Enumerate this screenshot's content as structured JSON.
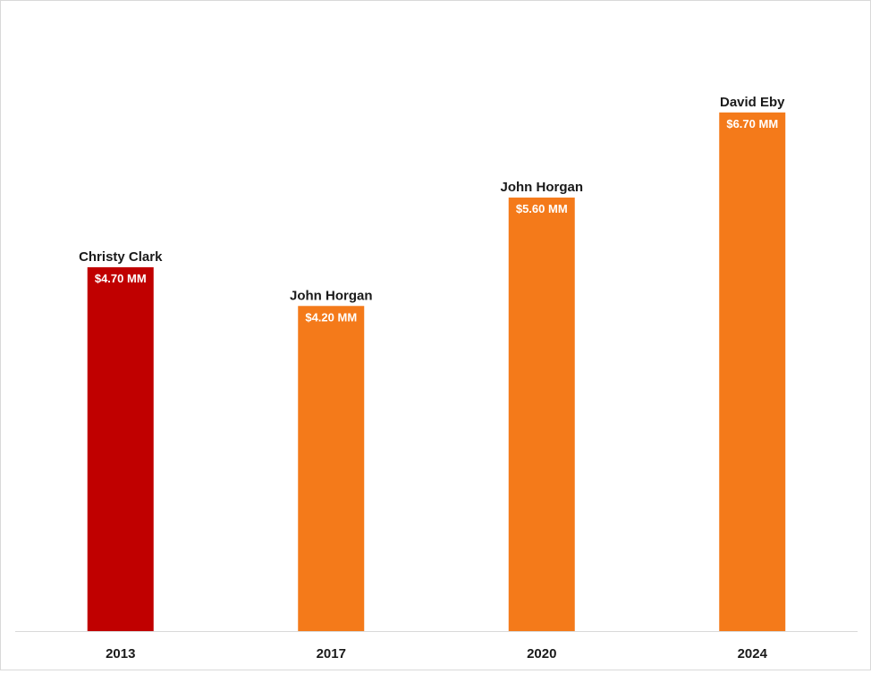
{
  "chart_data": {
    "type": "bar",
    "categories": [
      "2013",
      "2017",
      "2020",
      "2024"
    ],
    "values": [
      4.7,
      4.2,
      5.6,
      6.7
    ],
    "annotations": [
      "Christy Clark",
      "John Horgan",
      "John Horgan",
      "David Eby"
    ],
    "data_labels": [
      "$4.70 MM",
      "$4.20 MM",
      "$5.60 MM",
      "$6.70 MM"
    ],
    "bar_colors": [
      "#c00000",
      "#f47a1a",
      "#f47a1a",
      "#f47a1a"
    ],
    "ylim": [
      0,
      7.5
    ],
    "grid": false,
    "legend": "none"
  }
}
